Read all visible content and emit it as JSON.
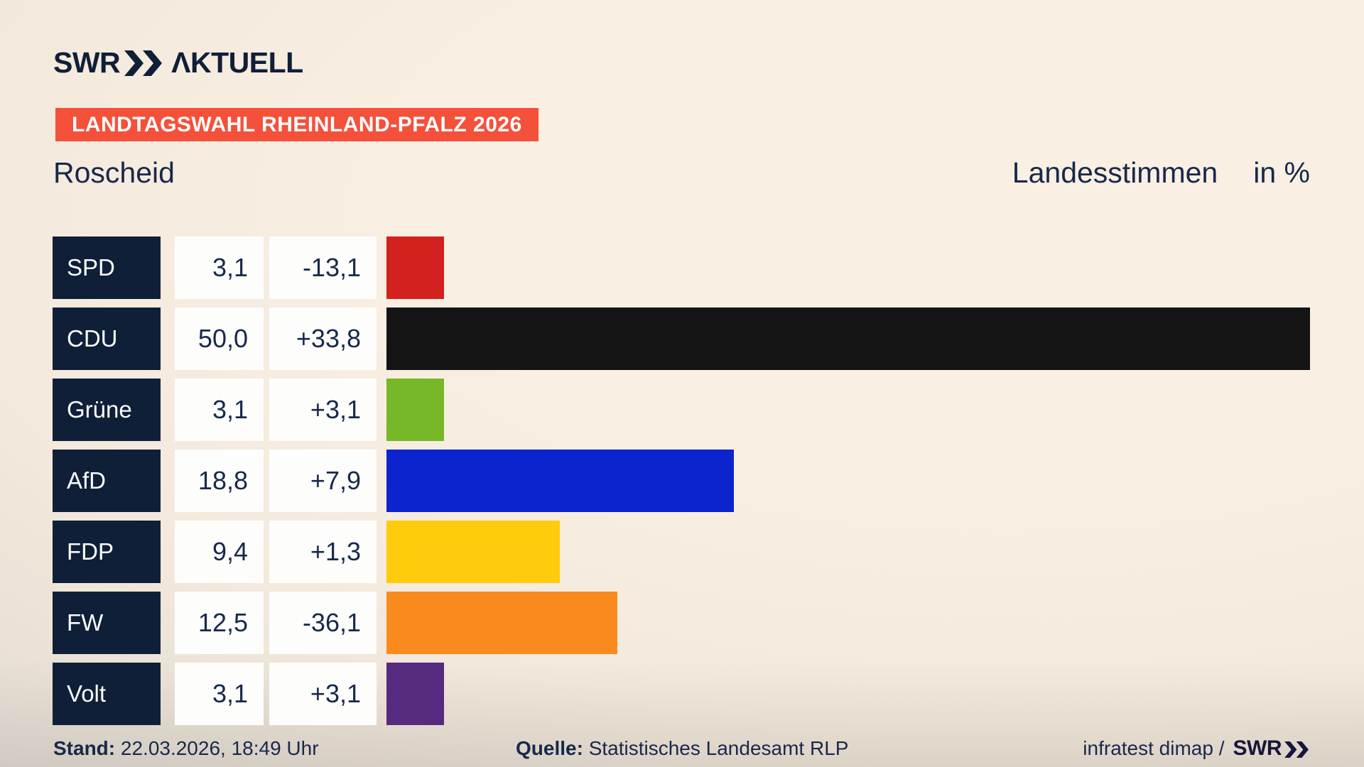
{
  "header": {
    "logo_brand": "SWR",
    "logo_suffix": "ΛKTUELL",
    "banner": "LANDTAGSWAHL RHEINLAND-PFALZ 2026",
    "region_title": "Roscheid",
    "vote_type": "Landesstimmen",
    "unit_label": "in %"
  },
  "chart_data": {
    "type": "bar",
    "orientation": "horizontal",
    "title": "Roscheid",
    "subtitle": "Landesstimmen in %",
    "categories": [
      "SPD",
      "CDU",
      "Grüne",
      "AfD",
      "FDP",
      "FW",
      "Volt"
    ],
    "series": [
      {
        "name": "value",
        "values": [
          3.1,
          50.0,
          3.1,
          18.8,
          9.4,
          12.5,
          3.1
        ]
      },
      {
        "name": "change",
        "values": [
          -13.1,
          33.8,
          3.1,
          7.9,
          1.3,
          -36.1,
          3.1
        ]
      }
    ],
    "xlim": [
      0,
      50
    ],
    "grid": false,
    "legend": false,
    "bar_colors": [
      "#d2211f",
      "#141414",
      "#77b829",
      "#0b24cd",
      "#ffcc0d",
      "#f98b1e",
      "#562a7e"
    ]
  },
  "rows": [
    {
      "party": "SPD",
      "value": "3,1",
      "change": "-13,1",
      "percent": 3.1,
      "color": "#d2211f"
    },
    {
      "party": "CDU",
      "value": "50,0",
      "change": "+33,8",
      "percent": 50.0,
      "color": "#141414"
    },
    {
      "party": "Grüne",
      "value": "3,1",
      "change": "+3,1",
      "percent": 3.1,
      "color": "#77b829"
    },
    {
      "party": "AfD",
      "value": "18,8",
      "change": "+7,9",
      "percent": 18.8,
      "color": "#0b24cd"
    },
    {
      "party": "FDP",
      "value": "9,4",
      "change": "+1,3",
      "percent": 9.4,
      "color": "#ffcc0d"
    },
    {
      "party": "FW",
      "value": "12,5",
      "change": "-36,1",
      "percent": 12.5,
      "color": "#f98b1e"
    },
    {
      "party": "Volt",
      "value": "3,1",
      "change": "+3,1",
      "percent": 3.1,
      "color": "#562a7e"
    }
  ],
  "footer": {
    "stand_label": "Stand:",
    "stand_value": "22.03.2026, 18:49 Uhr",
    "quelle_label": "Quelle:",
    "quelle_value": "Statistisches Landesamt RLP",
    "credit_text": "infratest dimap /",
    "credit_brand": "SWR"
  },
  "colors": {
    "navy": "#101f38",
    "text_navy": "#17294a",
    "banner_red": "#f4503a",
    "box_white": "#fdfdfc",
    "background_cream": "#f9efe2",
    "background_gray": "#dcd7cf"
  }
}
